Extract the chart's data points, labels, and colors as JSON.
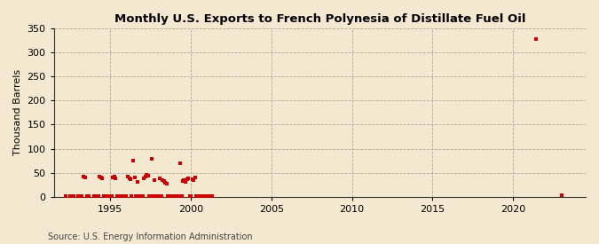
{
  "title": "Monthly U.S. Exports to French Polynesia of Distillate Fuel Oil",
  "ylabel": "Thousand Barrels",
  "source_text": "Source: U.S. Energy Information Administration",
  "background_color": "#f5e8d0",
  "plot_background_color": "#f5e8d0",
  "marker_color": "#cc0000",
  "marker_size": 5,
  "xlim": [
    1991.5,
    2024.5
  ],
  "ylim": [
    0,
    350
  ],
  "yticks": [
    0,
    50,
    100,
    150,
    200,
    250,
    300,
    350
  ],
  "xticks": [
    1995,
    2000,
    2005,
    2010,
    2015,
    2020
  ],
  "scatter_data": [
    [
      1992.25,
      2
    ],
    [
      1992.5,
      1
    ],
    [
      1992.75,
      1
    ],
    [
      1993.0,
      1
    ],
    [
      1993.08,
      1
    ],
    [
      1993.17,
      1
    ],
    [
      1993.25,
      1
    ],
    [
      1993.33,
      41
    ],
    [
      1993.42,
      40
    ],
    [
      1993.58,
      1
    ],
    [
      1993.67,
      1
    ],
    [
      1994.0,
      1
    ],
    [
      1994.08,
      1
    ],
    [
      1994.17,
      1
    ],
    [
      1994.25,
      1
    ],
    [
      1994.33,
      42
    ],
    [
      1994.42,
      40
    ],
    [
      1994.5,
      38
    ],
    [
      1994.58,
      1
    ],
    [
      1994.67,
      1
    ],
    [
      1994.75,
      1
    ],
    [
      1995.0,
      1
    ],
    [
      1995.08,
      1
    ],
    [
      1995.17,
      40
    ],
    [
      1995.25,
      42
    ],
    [
      1995.33,
      38
    ],
    [
      1995.42,
      1
    ],
    [
      1995.5,
      1
    ],
    [
      1995.58,
      1
    ],
    [
      1995.67,
      1
    ],
    [
      1995.75,
      1
    ],
    [
      1995.83,
      1
    ],
    [
      1996.0,
      1
    ],
    [
      1996.08,
      41
    ],
    [
      1996.17,
      38
    ],
    [
      1996.25,
      36
    ],
    [
      1996.33,
      1
    ],
    [
      1996.42,
      76
    ],
    [
      1996.5,
      40
    ],
    [
      1996.58,
      1
    ],
    [
      1996.67,
      30
    ],
    [
      1996.75,
      1
    ],
    [
      1996.83,
      1
    ],
    [
      1996.92,
      1
    ],
    [
      1997.0,
      1
    ],
    [
      1997.08,
      38
    ],
    [
      1997.17,
      42
    ],
    [
      1997.25,
      45
    ],
    [
      1997.33,
      43
    ],
    [
      1997.42,
      1
    ],
    [
      1997.5,
      1
    ],
    [
      1997.58,
      78
    ],
    [
      1997.67,
      1
    ],
    [
      1997.75,
      35
    ],
    [
      1997.83,
      1
    ],
    [
      1997.92,
      1
    ],
    [
      1998.0,
      1
    ],
    [
      1998.08,
      38
    ],
    [
      1998.17,
      1
    ],
    [
      1998.25,
      35
    ],
    [
      1998.33,
      32
    ],
    [
      1998.42,
      29
    ],
    [
      1998.5,
      28
    ],
    [
      1998.58,
      1
    ],
    [
      1998.67,
      1
    ],
    [
      1998.75,
      1
    ],
    [
      1998.83,
      1
    ],
    [
      1998.92,
      1
    ],
    [
      1999.0,
      1
    ],
    [
      1999.08,
      1
    ],
    [
      1999.17,
      1
    ],
    [
      1999.25,
      1
    ],
    [
      1999.33,
      70
    ],
    [
      1999.42,
      1
    ],
    [
      1999.5,
      33
    ],
    [
      1999.58,
      35
    ],
    [
      1999.67,
      30
    ],
    [
      1999.75,
      37
    ],
    [
      1999.83,
      38
    ],
    [
      1999.92,
      1
    ],
    [
      2000.0,
      1
    ],
    [
      2000.08,
      37
    ],
    [
      2000.17,
      35
    ],
    [
      2000.25,
      40
    ],
    [
      2000.33,
      1
    ],
    [
      2000.42,
      1
    ],
    [
      2000.5,
      1
    ],
    [
      2000.58,
      1
    ],
    [
      2000.67,
      1
    ],
    [
      2000.75,
      1
    ],
    [
      2001.0,
      1
    ],
    [
      2001.08,
      2
    ],
    [
      2001.17,
      2
    ],
    [
      2001.25,
      1
    ],
    [
      2001.33,
      2
    ],
    [
      2021.42,
      328
    ],
    [
      2023.0,
      3
    ]
  ]
}
